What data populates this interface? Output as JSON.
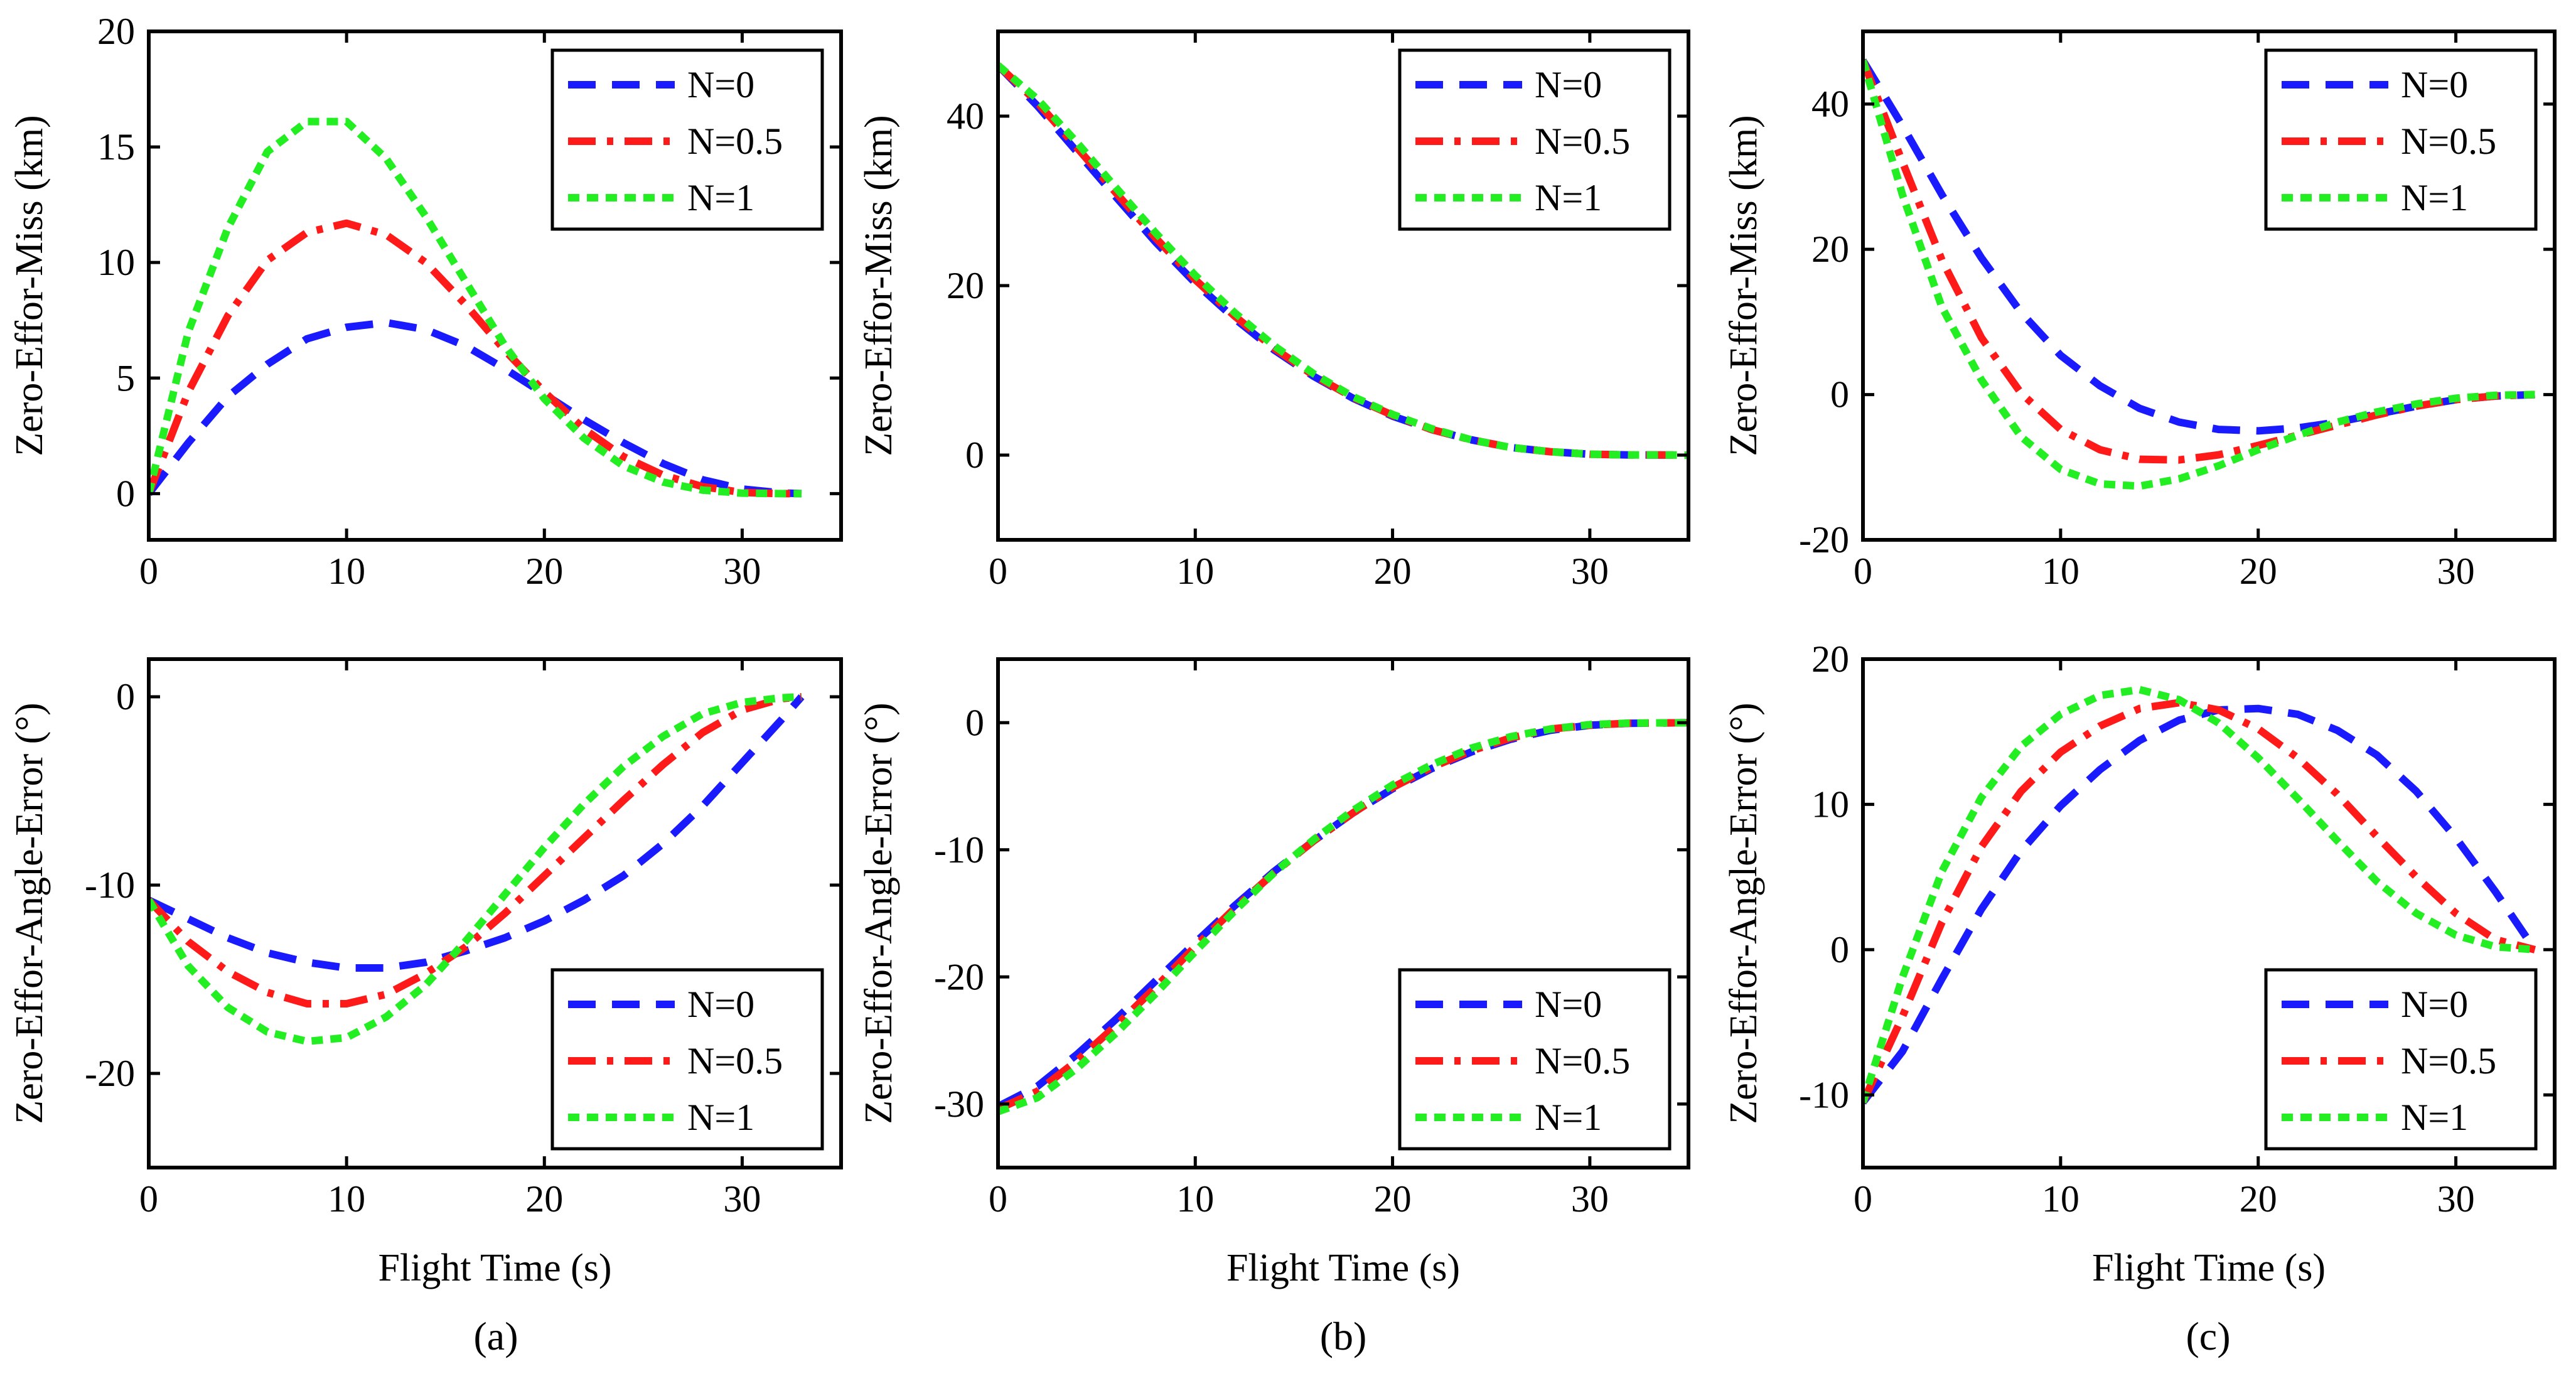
{
  "figure": {
    "captions": [
      "(a)",
      "(b)",
      "(c)"
    ]
  },
  "colors": {
    "N=0": "#1a1aff",
    "N=0.5": "#ff1a1a",
    "N=1": "#22ee22"
  },
  "chart_data": [
    {
      "id": "a-top",
      "type": "line",
      "xlabel": "",
      "ylabel": "Zero-Effor-Miss (km)",
      "xlim": [
        0,
        35
      ],
      "ylim": [
        -2,
        20
      ],
      "xticks": [
        0,
        10,
        20,
        30
      ],
      "yticks": [
        0,
        5,
        10,
        15,
        20
      ],
      "legend": "top-right",
      "grid": false,
      "series": [
        {
          "name": "N=0",
          "dash": "dash",
          "x": [
            0,
            2,
            4,
            6,
            8,
            10,
            12,
            14,
            16,
            18,
            20,
            22,
            24,
            26,
            28,
            30,
            32,
            33
          ],
          "y": [
            0,
            2.2,
            4.2,
            5.6,
            6.7,
            7.2,
            7.4,
            7.1,
            6.4,
            5.4,
            4.3,
            3.2,
            2.2,
            1.3,
            0.6,
            0.2,
            0.03,
            0
          ]
        },
        {
          "name": "N=0.5",
          "dash": "dashdot",
          "x": [
            0,
            2,
            4,
            6,
            8,
            10,
            12,
            14,
            16,
            18,
            20,
            22,
            24,
            26,
            28,
            30,
            32,
            33
          ],
          "y": [
            0,
            4.4,
            7.7,
            10.1,
            11.3,
            11.7,
            11.2,
            10,
            8.2,
            6.2,
            4.4,
            2.8,
            1.6,
            0.8,
            0.3,
            0.05,
            0,
            0
          ]
        },
        {
          "name": "N=1",
          "dash": "dot",
          "x": [
            0,
            2,
            4,
            6,
            8,
            10,
            12,
            14,
            16,
            18,
            20,
            22,
            24,
            26,
            28,
            30,
            32,
            33
          ],
          "y": [
            0,
            7,
            11.5,
            14.8,
            16.1,
            16.1,
            14.5,
            12,
            9.2,
            6.4,
            4.1,
            2.4,
            1.2,
            0.5,
            0.15,
            0.02,
            0,
            0
          ]
        }
      ]
    },
    {
      "id": "a-bottom",
      "type": "line",
      "xlabel": "Flight Time (s)",
      "ylabel": "Zero-Effor-Angle-Error (°)",
      "xlim": [
        0,
        35
      ],
      "ylim": [
        -25,
        2
      ],
      "xticks": [
        0,
        10,
        20,
        30
      ],
      "yticks": [
        -20,
        -10,
        0
      ],
      "legend": "bottom-right",
      "grid": false,
      "series": [
        {
          "name": "N=0",
          "dash": "dash",
          "x": [
            0,
            2,
            4,
            6,
            8,
            10,
            12,
            14,
            16,
            18,
            20,
            22,
            24,
            26,
            28,
            30,
            32,
            33
          ],
          "y": [
            -10.8,
            -11.8,
            -12.8,
            -13.6,
            -14.1,
            -14.4,
            -14.4,
            -14.1,
            -13.5,
            -12.8,
            -11.9,
            -10.8,
            -9.5,
            -7.8,
            -5.8,
            -3.5,
            -1.2,
            0
          ]
        },
        {
          "name": "N=0.5",
          "dash": "dashdot",
          "x": [
            0,
            2,
            4,
            6,
            8,
            10,
            12,
            14,
            16,
            18,
            20,
            22,
            24,
            26,
            28,
            30,
            32,
            33
          ],
          "y": [
            -10.8,
            -13,
            -14.6,
            -15.7,
            -16.3,
            -16.3,
            -15.8,
            -14.7,
            -13.3,
            -11.5,
            -9.5,
            -7.5,
            -5.5,
            -3.6,
            -1.9,
            -0.7,
            -0.1,
            0
          ]
        },
        {
          "name": "N=1",
          "dash": "dot",
          "x": [
            0,
            2,
            4,
            6,
            8,
            10,
            12,
            14,
            16,
            18,
            20,
            22,
            24,
            26,
            28,
            30,
            32,
            33
          ],
          "y": [
            -10.8,
            -14.3,
            -16.5,
            -17.8,
            -18.3,
            -18.1,
            -17,
            -15.3,
            -13,
            -10.5,
            -8,
            -5.7,
            -3.7,
            -2.1,
            -0.9,
            -0.3,
            -0.05,
            0
          ]
        }
      ]
    },
    {
      "id": "b-top",
      "type": "line",
      "xlabel": "",
      "ylabel": "Zero-Effor-Miss (km)",
      "xlim": [
        0,
        35
      ],
      "ylim": [
        -10,
        50
      ],
      "xticks": [
        0,
        10,
        20,
        30
      ],
      "yticks": [
        0,
        20,
        40
      ],
      "legend": "top-right",
      "grid": false,
      "series": [
        {
          "name": "N=0",
          "dash": "dash",
          "x": [
            0,
            2,
            4,
            6,
            8,
            10,
            12,
            14,
            16,
            18,
            20,
            22,
            24,
            26,
            28,
            30,
            32,
            35
          ],
          "y": [
            46,
            41.2,
            35.8,
            30.4,
            25.1,
            20.3,
            16.1,
            12.4,
            9.3,
            6.7,
            4.6,
            3,
            1.8,
            0.9,
            0.4,
            0.1,
            0.02,
            0
          ]
        },
        {
          "name": "N=0.5",
          "dash": "dashdot",
          "x": [
            0,
            2,
            4,
            6,
            8,
            10,
            12,
            14,
            16,
            18,
            20,
            22,
            24,
            26,
            28,
            30,
            32,
            35
          ],
          "y": [
            46,
            41.6,
            36.3,
            30.9,
            25.6,
            20.7,
            16.4,
            12.6,
            9.4,
            6.8,
            4.7,
            3,
            1.8,
            0.9,
            0.4,
            0.1,
            0.02,
            0
          ]
        },
        {
          "name": "N=1",
          "dash": "dot",
          "x": [
            0,
            2,
            4,
            6,
            8,
            10,
            12,
            14,
            16,
            18,
            20,
            22,
            24,
            26,
            28,
            30,
            32,
            35
          ],
          "y": [
            46,
            42,
            36.9,
            31.5,
            26.2,
            21.2,
            16.8,
            12.9,
            9.6,
            6.9,
            4.8,
            3.1,
            1.8,
            0.9,
            0.4,
            0.1,
            0.02,
            0
          ]
        }
      ]
    },
    {
      "id": "b-bottom",
      "type": "line",
      "xlabel": "Flight Time (s)",
      "ylabel": "Zero-Effor-Angle-Error (°)",
      "xlim": [
        0,
        35
      ],
      "ylim": [
        -35,
        5
      ],
      "xticks": [
        0,
        10,
        20,
        30
      ],
      "yticks": [
        -30,
        -20,
        -10,
        0
      ],
      "legend": "bottom-right",
      "grid": false,
      "series": [
        {
          "name": "N=0",
          "dash": "dash",
          "x": [
            0,
            2,
            4,
            6,
            8,
            10,
            12,
            14,
            16,
            18,
            20,
            22,
            24,
            26,
            28,
            30,
            32,
            35
          ],
          "y": [
            -30.2,
            -28.6,
            -26.1,
            -23.3,
            -20.3,
            -17.3,
            -14.4,
            -11.7,
            -9.3,
            -7.1,
            -5.2,
            -3.6,
            -2.3,
            -1.3,
            -0.6,
            -0.2,
            -0.05,
            0
          ]
        },
        {
          "name": "N=0.5",
          "dash": "dashdot",
          "x": [
            0,
            2,
            4,
            6,
            8,
            10,
            12,
            14,
            16,
            18,
            20,
            22,
            24,
            26,
            28,
            30,
            32,
            35
          ],
          "y": [
            -30.4,
            -29,
            -26.6,
            -23.8,
            -20.8,
            -17.6,
            -14.6,
            -11.8,
            -9.3,
            -7.1,
            -5.1,
            -3.5,
            -2.2,
            -1.2,
            -0.5,
            -0.2,
            -0.04,
            0
          ]
        },
        {
          "name": "N=1",
          "dash": "dot",
          "x": [
            0,
            2,
            4,
            6,
            8,
            10,
            12,
            14,
            16,
            18,
            20,
            22,
            24,
            26,
            28,
            30,
            32,
            35
          ],
          "y": [
            -30.6,
            -29.5,
            -27.2,
            -24.4,
            -21.3,
            -18,
            -14.8,
            -11.8,
            -9.2,
            -6.9,
            -4.9,
            -3.3,
            -2,
            -1.1,
            -0.5,
            -0.15,
            -0.03,
            0
          ]
        }
      ]
    },
    {
      "id": "c-top",
      "type": "line",
      "xlabel": "",
      "ylabel": "Zero-Effor-Miss (km)",
      "xlim": [
        0,
        35
      ],
      "ylim": [
        -20,
        50
      ],
      "xticks": [
        0,
        10,
        20,
        30
      ],
      "yticks": [
        -20,
        0,
        20,
        40
      ],
      "legend": "top-right",
      "grid": false,
      "series": [
        {
          "name": "N=0",
          "dash": "dash",
          "x": [
            0,
            2,
            4,
            6,
            8,
            10,
            12,
            14,
            16,
            18,
            20,
            22,
            24,
            26,
            28,
            30,
            32,
            34
          ],
          "y": [
            46,
            37,
            27.5,
            18.8,
            11.3,
            5.4,
            1.2,
            -1.9,
            -3.8,
            -4.8,
            -5,
            -4.6,
            -3.8,
            -2.7,
            -1.6,
            -0.7,
            -0.2,
            0
          ]
        },
        {
          "name": "N=0.5",
          "dash": "dashdot",
          "x": [
            0,
            2,
            4,
            6,
            8,
            10,
            12,
            14,
            16,
            18,
            20,
            22,
            24,
            26,
            28,
            30,
            32,
            34
          ],
          "y": [
            46,
            32,
            18.5,
            7.8,
            0.2,
            -4.8,
            -7.6,
            -8.9,
            -9,
            -8.3,
            -7,
            -5.6,
            -4.2,
            -2.8,
            -1.6,
            -0.7,
            -0.2,
            0
          ]
        },
        {
          "name": "N=1",
          "dash": "dot",
          "x": [
            0,
            2,
            4,
            6,
            8,
            10,
            12,
            14,
            16,
            18,
            20,
            22,
            24,
            26,
            28,
            30,
            32,
            34
          ],
          "y": [
            46,
            27.5,
            12,
            2,
            -5.8,
            -10.3,
            -12.3,
            -12.6,
            -11.6,
            -9.8,
            -7.6,
            -5.6,
            -3.8,
            -2.4,
            -1.3,
            -0.5,
            -0.1,
            0
          ]
        }
      ]
    },
    {
      "id": "c-bottom",
      "type": "line",
      "xlabel": "Flight Time (s)",
      "ylabel": "Zero-Effor-Angle-Error (°)",
      "xlim": [
        0,
        35
      ],
      "ylim": [
        -15,
        20
      ],
      "xticks": [
        0,
        10,
        20,
        30
      ],
      "yticks": [
        -10,
        0,
        10,
        20
      ],
      "legend": "bottom-right",
      "grid": false,
      "series": [
        {
          "name": "N=0",
          "dash": "dash",
          "x": [
            0,
            2,
            4,
            6,
            8,
            10,
            12,
            14,
            16,
            18,
            20,
            22,
            24,
            26,
            28,
            30,
            32,
            34
          ],
          "y": [
            -10.5,
            -7,
            -2,
            2.8,
            6.8,
            9.9,
            12.4,
            14.4,
            15.8,
            16.5,
            16.6,
            16.2,
            15.1,
            13.4,
            10.9,
            7.7,
            4,
            0
          ]
        },
        {
          "name": "N=0.5",
          "dash": "dashdot",
          "x": [
            0,
            2,
            4,
            6,
            8,
            10,
            12,
            14,
            16,
            18,
            20,
            22,
            24,
            26,
            28,
            30,
            32,
            34
          ],
          "y": [
            -10.5,
            -4.6,
            1.9,
            7.1,
            10.9,
            13.6,
            15.4,
            16.6,
            17,
            16.5,
            15.2,
            13.2,
            10.7,
            7.8,
            5,
            2.5,
            0.7,
            0
          ]
        },
        {
          "name": "N=1",
          "dash": "dot",
          "x": [
            0,
            2,
            4,
            6,
            8,
            10,
            12,
            14,
            16,
            18,
            20,
            22,
            24,
            26,
            28,
            30,
            32,
            34
          ],
          "y": [
            -10.5,
            -1.9,
            5.4,
            10.5,
            14,
            16.2,
            17.5,
            17.9,
            17.2,
            15.6,
            13.2,
            10.4,
            7.5,
            4.7,
            2.5,
            1,
            0.2,
            0
          ]
        }
      ]
    }
  ]
}
